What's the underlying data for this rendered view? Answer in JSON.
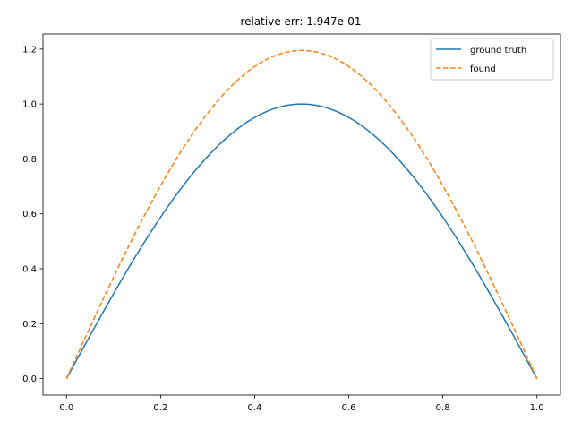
{
  "chart_data": {
    "type": "line",
    "title": "relative err: 1.947e-01",
    "xlabel": "",
    "ylabel": "",
    "xlim": [
      -0.05,
      1.05
    ],
    "ylim": [
      -0.06,
      1.255
    ],
    "grid": false,
    "legend_position": "top-right",
    "xticks": [
      0.0,
      0.2,
      0.4,
      0.6,
      0.8,
      1.0
    ],
    "xtick_labels": [
      "0.0",
      "0.2",
      "0.4",
      "0.6",
      "0.8",
      "1.0"
    ],
    "yticks": [
      0.0,
      0.2,
      0.4,
      0.6,
      0.8,
      1.0,
      1.2
    ],
    "ytick_labels": [
      "0.0",
      "0.2",
      "0.4",
      "0.6",
      "0.8",
      "1.0",
      "1.2"
    ],
    "series": [
      {
        "name": "ground truth",
        "color": "#1f77b4",
        "style": "solid",
        "x": [
          0.0,
          0.05,
          0.1,
          0.15,
          0.2,
          0.25,
          0.3,
          0.35,
          0.4,
          0.45,
          0.5,
          0.55,
          0.6,
          0.65,
          0.7,
          0.75,
          0.8,
          0.85,
          0.9,
          0.95,
          1.0
        ],
        "y": [
          0.0,
          0.156,
          0.309,
          0.454,
          0.588,
          0.707,
          0.809,
          0.891,
          0.951,
          0.988,
          1.0,
          0.988,
          0.951,
          0.891,
          0.809,
          0.707,
          0.588,
          0.454,
          0.309,
          0.156,
          0.0
        ]
      },
      {
        "name": "found",
        "color": "#ff7f0e",
        "style": "dashed",
        "x": [
          0.0,
          0.05,
          0.1,
          0.15,
          0.2,
          0.25,
          0.3,
          0.35,
          0.4,
          0.45,
          0.5,
          0.55,
          0.6,
          0.65,
          0.7,
          0.75,
          0.8,
          0.85,
          0.9,
          0.95,
          1.0
        ],
        "y": [
          0.0,
          0.187,
          0.369,
          0.542,
          0.702,
          0.845,
          0.966,
          1.064,
          1.136,
          1.18,
          1.195,
          1.18,
          1.136,
          1.064,
          0.966,
          0.845,
          0.702,
          0.542,
          0.369,
          0.187,
          0.0
        ]
      }
    ]
  }
}
